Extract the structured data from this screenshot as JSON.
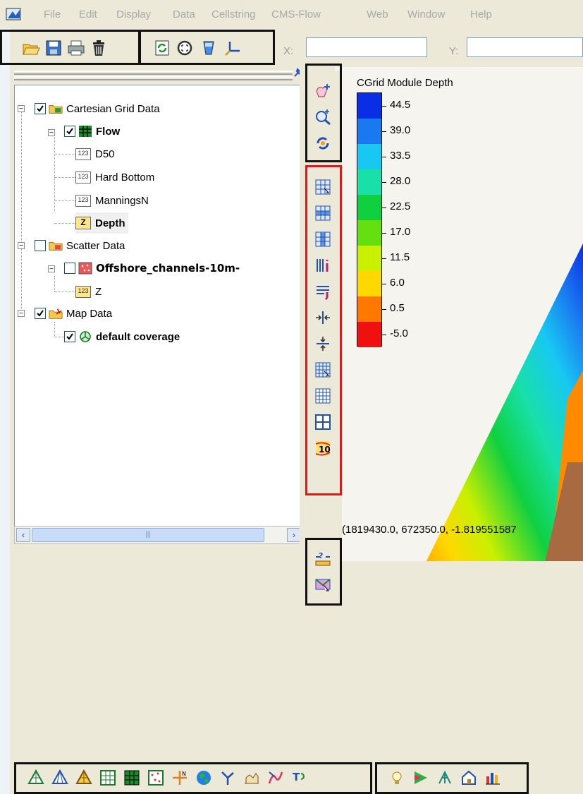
{
  "menubar": {
    "items": [
      "File",
      "Edit",
      "Display",
      "Data",
      "Cellstring",
      "CMS-Flow",
      "Web",
      "Window",
      "Help"
    ]
  },
  "coords": {
    "x_label": "X:",
    "y_label": "Y:",
    "x_value": "",
    "y_value": ""
  },
  "tree": {
    "cartesian": "Cartesian Grid Data",
    "flow": "Flow",
    "d50": "D50",
    "hard_bottom": "Hard Bottom",
    "mannings": "ManningsN",
    "depth": "Depth",
    "scatter": "Scatter Data",
    "offshore": "Offshore_channels-10m-",
    "z": "Z",
    "map": "Map Data",
    "coverage": "default coverage",
    "num_icon": "123",
    "z_icon": "Z"
  },
  "legend": {
    "title": "CGrid Module Depth",
    "labels": [
      "44.5",
      "39.0",
      "33.5",
      "28.0",
      "22.5",
      "17.0",
      "11.5",
      "6.0",
      "0.5",
      "-5.0"
    ],
    "colors": [
      "#0a2ee6",
      "#1a78f0",
      "#18c8f2",
      "#18e0a8",
      "#10d040",
      "#64e010",
      "#c8f000",
      "#ffd800",
      "#ff7800",
      "#f01010"
    ]
  },
  "status": {
    "coordinates": "(1819430.0, 672350.0, -1.819551587"
  },
  "icons": {
    "main_toolbar": [
      "open-icon",
      "save-icon",
      "print-icon",
      "delete-icon",
      "refresh-icon",
      "frame-icon",
      "display-options-icon",
      "axes-icon"
    ],
    "vertical_tools": [
      "select-grid-icon",
      "zoom-icon",
      "rotate-icon",
      "select-cell-icon",
      "select-row-icon",
      "select-column-icon",
      "merge-cells-icon",
      "refine-icon",
      "split-horizontal-icon",
      "split-vertical-icon",
      "create-cells-icon",
      "grid-frame-icon",
      "cell-grid-icon",
      "contour-label-icon",
      "ruler-icon",
      "select-view-icon"
    ],
    "module_toolbar": [
      "mesh-module-icon",
      "tin-module-icon",
      "grid-module-icon",
      "cartesian-grid-module-icon",
      "2d-grid-module-icon",
      "scatter-module-icon",
      "map-module-icon",
      "gis-module-icon",
      "particle-module-icon",
      "1d-module-icon",
      "curve-module-icon",
      "annotation-module-icon"
    ],
    "extra_toolbar": [
      "light-icon",
      "contour-icon",
      "vector-icon",
      "house-icon",
      "plot-icon"
    ]
  }
}
